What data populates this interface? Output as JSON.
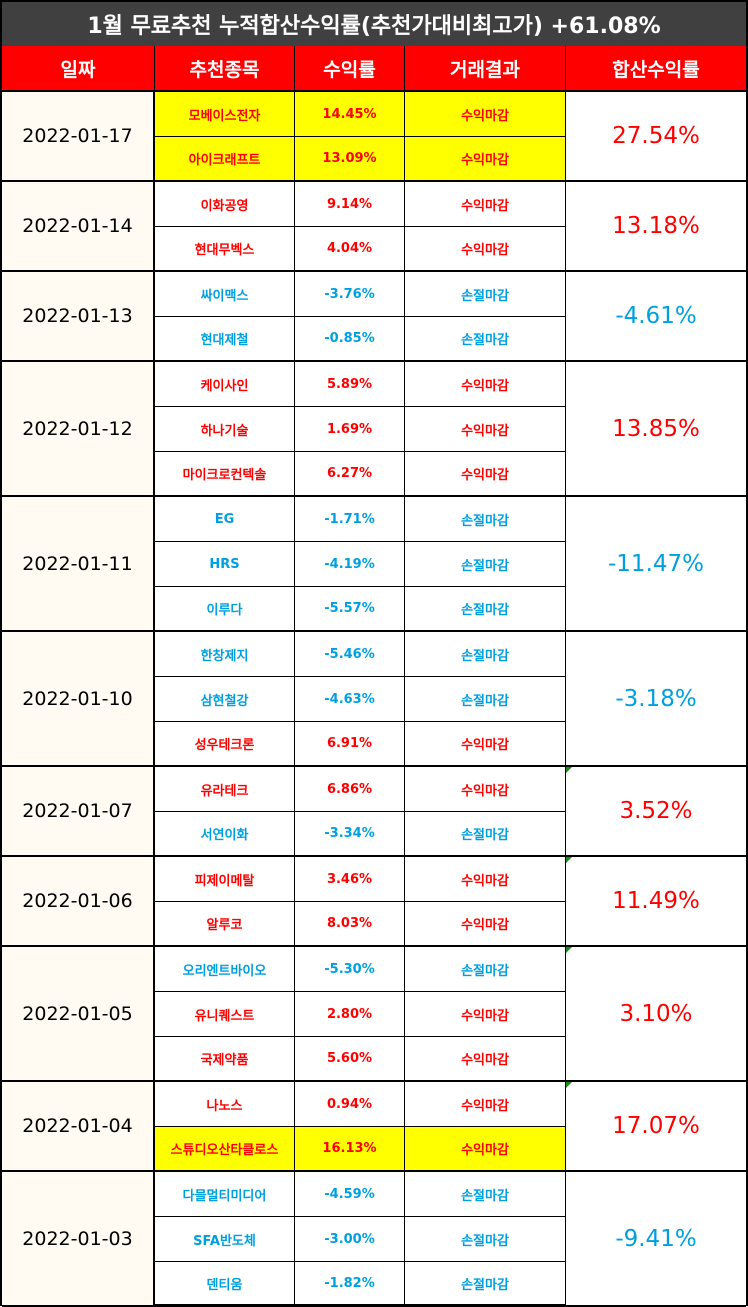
{
  "title": "1월 무료추천 누적합산수익률(추천가대비최고가) +61.08%",
  "headers": [
    "일짜",
    "추천종목",
    "수익률",
    "거래결과",
    "합산수익률"
  ],
  "colors": {
    "profit": "#ff0000",
    "loss": "#00a0e0",
    "highlight": "#ffff00",
    "header_bg": "#ff0000",
    "title_bg": "#404040"
  },
  "groups": [
    {
      "date": "2022-01-17",
      "total": "27.54%",
      "total_type": "profit",
      "rows": [
        {
          "name": "모베이스전자",
          "rate": "14.45%",
          "result": "수익마감",
          "type": "profit",
          "highlight": true
        },
        {
          "name": "아이크래프트",
          "rate": "13.09%",
          "result": "수익마감",
          "type": "profit",
          "highlight": true
        }
      ]
    },
    {
      "date": "2022-01-14",
      "total": "13.18%",
      "total_type": "profit",
      "rows": [
        {
          "name": "이화공영",
          "rate": "9.14%",
          "result": "수익마감",
          "type": "profit"
        },
        {
          "name": "현대무벡스",
          "rate": "4.04%",
          "result": "수익마감",
          "type": "profit"
        }
      ]
    },
    {
      "date": "2022-01-13",
      "total": "-4.61%",
      "total_type": "loss",
      "rows": [
        {
          "name": "싸이맥스",
          "rate": "-3.76%",
          "result": "손절마감",
          "type": "loss"
        },
        {
          "name": "현대제철",
          "rate": "-0.85%",
          "result": "손절마감",
          "type": "loss"
        }
      ]
    },
    {
      "date": "2022-01-12",
      "total": "13.85%",
      "total_type": "profit",
      "rows": [
        {
          "name": "케이사인",
          "rate": "5.89%",
          "result": "수익마감",
          "type": "profit"
        },
        {
          "name": "하나기술",
          "rate": "1.69%",
          "result": "수익마감",
          "type": "profit"
        },
        {
          "name": "마이크로컨텍솔",
          "rate": "6.27%",
          "result": "수익마감",
          "type": "profit"
        }
      ]
    },
    {
      "date": "2022-01-11",
      "total": "-11.47%",
      "total_type": "loss",
      "rows": [
        {
          "name": "EG",
          "rate": "-1.71%",
          "result": "손절마감",
          "type": "loss"
        },
        {
          "name": "HRS",
          "rate": "-4.19%",
          "result": "손절마감",
          "type": "loss"
        },
        {
          "name": "이루다",
          "rate": "-5.57%",
          "result": "손절마감",
          "type": "loss"
        }
      ]
    },
    {
      "date": "2022-01-10",
      "total": "-3.18%",
      "total_type": "loss",
      "rows": [
        {
          "name": "한창제지",
          "rate": "-5.46%",
          "result": "손절마감",
          "type": "loss"
        },
        {
          "name": "삼현철강",
          "rate": "-4.63%",
          "result": "손절마감",
          "type": "loss"
        },
        {
          "name": "성우테크론",
          "rate": "6.91%",
          "result": "수익마감",
          "type": "profit"
        }
      ]
    },
    {
      "date": "2022-01-07",
      "total": "3.52%",
      "total_type": "profit",
      "corner": true,
      "rows": [
        {
          "name": "유라테크",
          "rate": "6.86%",
          "result": "수익마감",
          "type": "profit"
        },
        {
          "name": "서연이화",
          "rate": "-3.34%",
          "result": "손절마감",
          "type": "loss"
        }
      ]
    },
    {
      "date": "2022-01-06",
      "total": "11.49%",
      "total_type": "profit",
      "corner": true,
      "rows": [
        {
          "name": "피제이메탈",
          "rate": "3.46%",
          "result": "수익마감",
          "type": "profit"
        },
        {
          "name": "알루코",
          "rate": "8.03%",
          "result": "수익마감",
          "type": "profit"
        }
      ]
    },
    {
      "date": "2022-01-05",
      "total": "3.10%",
      "total_type": "profit",
      "corner": true,
      "rows": [
        {
          "name": "오리엔트바이오",
          "rate": "-5.30%",
          "result": "손절마감",
          "type": "loss"
        },
        {
          "name": "유니퀘스트",
          "rate": "2.80%",
          "result": "수익마감",
          "type": "profit"
        },
        {
          "name": "국제약품",
          "rate": "5.60%",
          "result": "수익마감",
          "type": "profit"
        }
      ]
    },
    {
      "date": "2022-01-04",
      "total": "17.07%",
      "total_type": "profit",
      "corner": true,
      "rows": [
        {
          "name": "나노스",
          "rate": "0.94%",
          "result": "수익마감",
          "type": "profit"
        },
        {
          "name": "스튜디오산타클로스",
          "rate": "16.13%",
          "result": "수익마감",
          "type": "profit",
          "highlight": true
        }
      ]
    },
    {
      "date": "2022-01-03",
      "total": "-9.41%",
      "total_type": "loss",
      "rows": [
        {
          "name": "다믈멀티미디어",
          "rate": "-4.59%",
          "result": "손절마감",
          "type": "loss"
        },
        {
          "name": "SFA반도체",
          "rate": "-3.00%",
          "result": "손절마감",
          "type": "loss"
        },
        {
          "name": "덴티움",
          "rate": "-1.82%",
          "result": "손절마감",
          "type": "loss"
        }
      ]
    }
  ]
}
